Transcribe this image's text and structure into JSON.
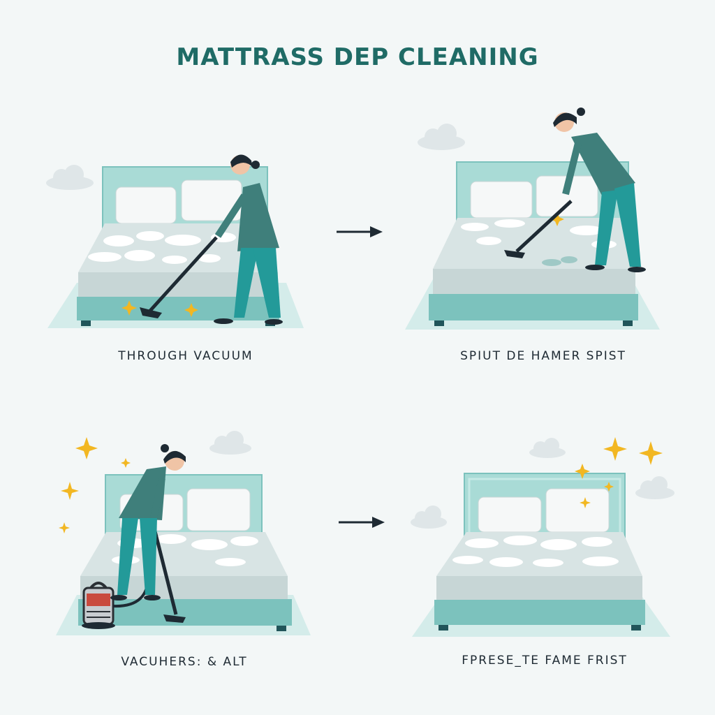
{
  "title": "MATTRASS DEP CLEANING",
  "steps": [
    {
      "caption": "THROUGH VACUUM"
    },
    {
      "caption": "SPIUT DE HAMER SPIST"
    },
    {
      "caption": "VACUHERS: & ALT"
    },
    {
      "caption": "FPRESE_TE FAME FRIST"
    }
  ],
  "colors": {
    "background": "#f3f7f7",
    "title": "#1f6b66",
    "bed_frame": "#7cc2bd",
    "headboard": "#a9dbd6",
    "mattress": "#d8e4e4",
    "foam": "#ffffff",
    "shirt": "#3f7f7b",
    "pants": "#239a99",
    "sparkle": "#f2b722",
    "arrow": "#1e2a33"
  }
}
